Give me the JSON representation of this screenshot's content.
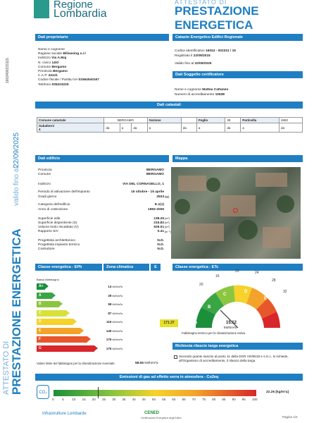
{
  "header": {
    "brand_line1": "Regione",
    "brand_line2": "Lombardia",
    "ape_title": "ATTESTATO DI",
    "ape_sub": "PRESTAZIONE ENERGETICA"
  },
  "side": {
    "left_title1": "ATTESTATO DI",
    "left_title2": "PRESTAZIONE ENERGETICA",
    "valid_label": "valido fino al",
    "valid_date": "22/09/2025",
    "code": "1602400233115"
  },
  "owner": {
    "head": "Dati proprietario",
    "fields": [
      {
        "k": "Nome e cognome",
        "v": ""
      },
      {
        "k": "Ragione sociale",
        "v": "Bilieasing s.r.l"
      },
      {
        "k": "Indirizzo",
        "v": "Via A.Maj"
      },
      {
        "k": "N. civico",
        "v": "14/d"
      },
      {
        "k": "Comune",
        "v": "Bergamo"
      },
      {
        "k": "Provincia",
        "v": "Bergamo"
      },
      {
        "k": "C.A.P.",
        "v": "24121"
      },
      {
        "k": "Codice fiscale / Partita IVA",
        "v": "01564540167"
      },
      {
        "k": "Telefono",
        "v": "035223225"
      }
    ]
  },
  "catasto": {
    "head": "Catasto Energetico Edifici Regionale",
    "code_k": "Codice identificativo",
    "code_v": "16024 - 002331 / 15",
    "reg_k": "Registrato il",
    "reg_v": "22/09/2015",
    "valid_k": "Valido fino al",
    "valid_v": "22/09/2025"
  },
  "certifier": {
    "head": "Dati Soggetto certificatore",
    "name_k": "Nome e cognome",
    "name_v": "Mattea Cattaneo",
    "num_k": "Numero di accreditamento",
    "num_v": "10638"
  },
  "cadastral": {
    "head": "Dati catastali",
    "comune_k": "Comune catastale",
    "comune_v": "BERGAMO",
    "sezione_k": "Sezione",
    "foglio_k": "Foglio",
    "foglio_v": "38",
    "particella_k": "Particella",
    "particella_v": "4682",
    "sub_k": "Subalterni",
    "sub_v": "4",
    "da": "da",
    "a": "a"
  },
  "building": {
    "head": "Dati edificio",
    "rows": [
      {
        "k": "Provincia",
        "v": "BERGAMO"
      },
      {
        "k": "Comune",
        "v": "BERGAMO"
      },
      {
        "k": "Indirizzo",
        "v": "VIA DEL CORNASELLO, 1"
      },
      {
        "k": "Periodo di attivazione dell'impianto",
        "v": "15 ottobre - 15 aprile"
      },
      {
        "k": "Gradi giorno",
        "v": "2533"
      },
      {
        "k": "Categoria dell'edificio",
        "v": "E.1(1)"
      },
      {
        "k": "Anno di costruzione",
        "v": "1993-2006"
      },
      {
        "k": "Superficie utile",
        "v": "138.25"
      },
      {
        "k": "Superficie disperdente (S)",
        "v": "215.82"
      },
      {
        "k": "Volume lordo riscaldato (V)",
        "v": "529.01"
      },
      {
        "k": "Rapporto S/V",
        "v": "0.41"
      },
      {
        "k": "Progettista architettonico",
        "v": "N.D."
      },
      {
        "k": "Progettista impianto termico",
        "v": "N.D."
      },
      {
        "k": "Costruttore",
        "v": "N.D."
      }
    ],
    "gg_unit": "[gg]",
    "m2": "[m²]",
    "m3": "[m³]",
    "m1": "[m⁻¹]"
  },
  "map": {
    "head": "Mappa"
  },
  "classes": {
    "head": "Classe energetica - EPh",
    "zone": "Zona climatica",
    "zone_v": "E",
    "bars": [
      {
        "l": "A+",
        "v": "14",
        "c": "#1c8f3a"
      },
      {
        "l": "A",
        "v": "29",
        "c": "#3aa544"
      },
      {
        "l": "B",
        "v": "58",
        "c": "#8cc640"
      },
      {
        "l": "C",
        "v": "87",
        "c": "#d7e13a"
      },
      {
        "l": "D",
        "v": "116",
        "c": "#f6d22a"
      },
      {
        "l": "E",
        "v": "145",
        "c": "#f3a32a"
      },
      {
        "l": "F",
        "v": "175",
        "c": "#e8572a"
      },
      {
        "l": "G",
        "v": "175",
        "c": "#d8262a"
      }
    ],
    "unit": "kWh/m²a",
    "current": "171.37",
    "limit_label": "Valore limite del fabbisogno per la climatizzazione invernale:",
    "limit_v": "58.55",
    "limit_unit": "kWh/m²a",
    "side_label": "Basso fabbisogno"
  },
  "et": {
    "head": "Classe energetica - ETc",
    "value": "15.12",
    "unit": "kWh/m²a",
    "note": "Fabbisogno termico per la climatizzazione estiva",
    "labels": [
      "A",
      "B",
      "C",
      "D",
      "E",
      "F",
      "G"
    ],
    "numbers": [
      "20",
      "16",
      "20",
      "24",
      "28",
      "32"
    ]
  },
  "plate": {
    "head": "Richiesta rilascio targa energetica",
    "text": "Secondo quanto sancito al punto 11 della DGR VIII/5018 e s.m.i., si richiede, all'Organismo di accreditamento, il rilascio della targa"
  },
  "emissions": {
    "head": "Emissioni di gas ad effetto serra in atmosfera - Co2eq",
    "value": "22.26",
    "unit": "[kg/m²a]",
    "scale": [
      "0",
      "5",
      "10",
      "15",
      "20",
      "25",
      "30",
      "35",
      "40",
      "45",
      "50",
      "55",
      "60",
      "65",
      "70",
      "75",
      "80",
      "85",
      "90",
      "95",
      "100"
    ]
  },
  "footer": {
    "infra": "Infrastrutture Lombarde",
    "cened": "CENED",
    "cened_sub": "Certificazione Energetica degli Edifici",
    "page": "Pagina 1/2"
  }
}
